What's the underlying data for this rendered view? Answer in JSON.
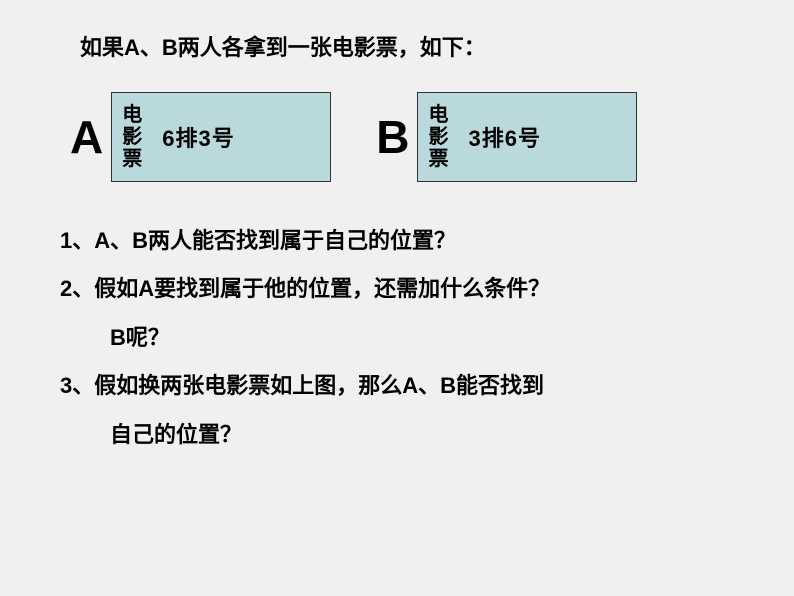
{
  "intro_text": "如果A、B两人各拿到一张电影票，如下：",
  "ticket_a": {
    "letter": "A",
    "label_line1": "电",
    "label_line2": "影",
    "label_line3": "票",
    "seat": "6排3号"
  },
  "ticket_b": {
    "letter": "B",
    "label_line1": "电",
    "label_line2": "影",
    "label_line3": "票",
    "seat": "3排6号"
  },
  "questions": {
    "q1": "1、A、B两人能否找到属于自己的位置？",
    "q2": "2、假如A要找到属于他的位置，还需加什么条件？",
    "q2_cont": "B呢？",
    "q3": "3、假如换两张电影票如上图，那么A、B能否找到",
    "q3_cont": "自己的位置？"
  },
  "styling": {
    "background_color": "#f0f0f0",
    "ticket_bg_color": "#b9d9dc",
    "ticket_border_color": "#333333",
    "text_color": "#000000",
    "intro_fontsize": 22,
    "letter_fontsize": 46,
    "ticket_label_fontsize": 20,
    "ticket_seat_fontsize": 22,
    "question_fontsize": 22,
    "ticket_width": 220,
    "ticket_height": 90
  }
}
